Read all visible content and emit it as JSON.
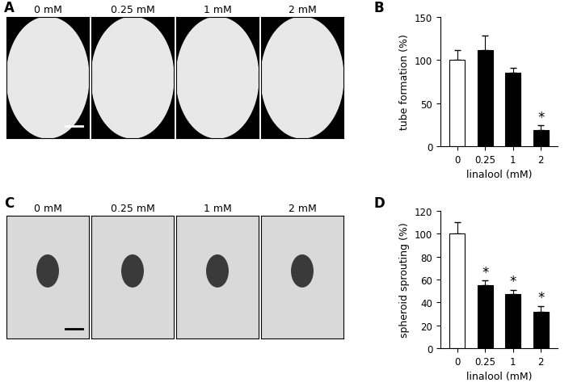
{
  "image_panels": [
    {
      "panel": "A",
      "style": "tube",
      "labels": [
        "0 mM",
        "0.25 mM",
        "1 mM",
        "2 mM"
      ]
    },
    {
      "panel": "C",
      "style": "spheroid",
      "labels": [
        "0 mM",
        "0.25 mM",
        "1 mM",
        "2 mM"
      ]
    }
  ],
  "chart_data": [
    {
      "panel": "B",
      "type": "bar",
      "categories": [
        "0",
        "0.25",
        "1",
        "2"
      ],
      "values": [
        100,
        112,
        85,
        19
      ],
      "errors": [
        12,
        16,
        6,
        5
      ],
      "significance": [
        null,
        null,
        null,
        "*"
      ],
      "colors": [
        "#ffffff",
        "#000000",
        "#000000",
        "#000000"
      ],
      "xlabel": "linalool (mM)",
      "ylabel": "tube formation (%)",
      "ylim": [
        0,
        150
      ],
      "yticks": [
        0,
        50,
        100,
        150
      ]
    },
    {
      "panel": "D",
      "type": "bar",
      "categories": [
        "0",
        "0.25",
        "1",
        "2"
      ],
      "values": [
        100,
        55,
        47,
        32
      ],
      "errors": [
        10,
        4,
        4,
        5
      ],
      "significance": [
        null,
        "*",
        "*",
        "*"
      ],
      "colors": [
        "#ffffff",
        "#000000",
        "#000000",
        "#000000"
      ],
      "xlabel": "linalool (mM)",
      "ylabel": "spheroid sprouting (%)",
      "ylim": [
        0,
        120
      ],
      "yticks": [
        0,
        20,
        40,
        60,
        80,
        100,
        120
      ]
    }
  ]
}
